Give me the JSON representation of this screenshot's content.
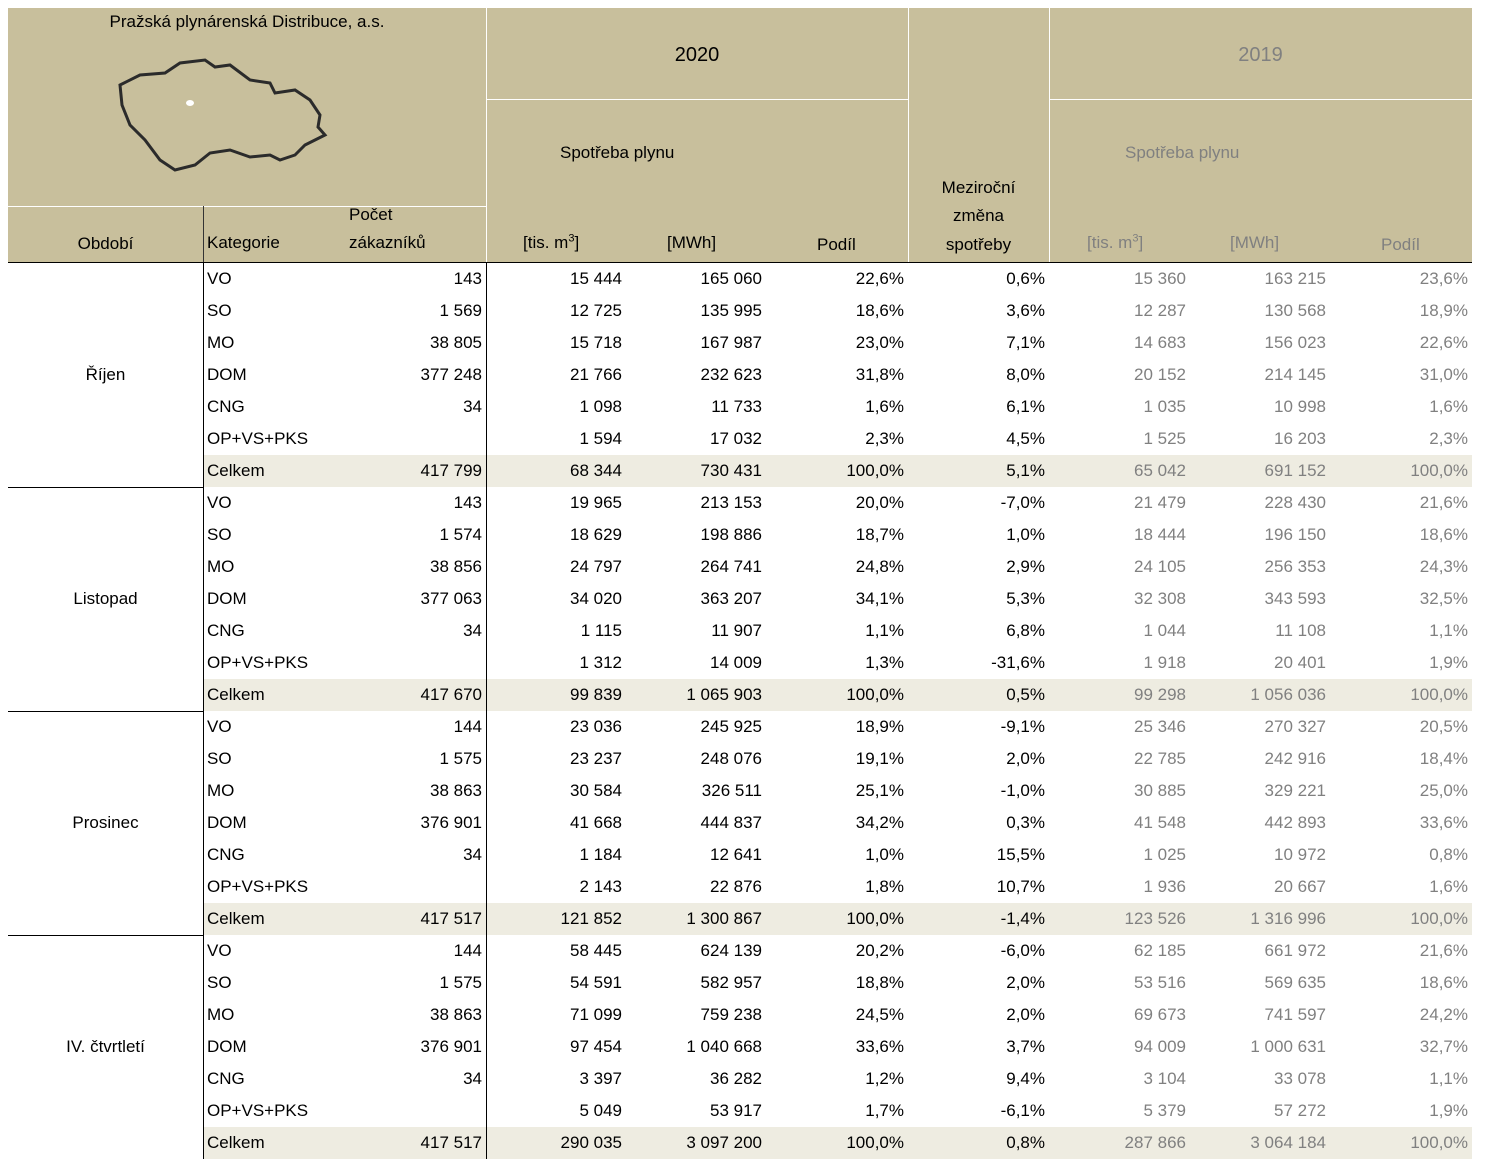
{
  "header": {
    "company": "Pražská plynárenská Distribuce, a.s.",
    "year_2020": "2020",
    "year_2019": "2019",
    "consumption_2020": "Spotřeba plynu",
    "consumption_2019": "Spotřeba plynu",
    "period": "Období",
    "category": "Kategorie",
    "customers": [
      "Počet",
      "zákazníků"
    ],
    "unit_volume": [
      "[tis. m",
      "3",
      "]"
    ],
    "unit_energy": "[MWh]",
    "share": "Podíl",
    "change": [
      "Meziroční",
      "změna",
      "spotřeby"
    ]
  },
  "groups": [
    {
      "period": "Říjen",
      "rows": [
        [
          "VO",
          "143",
          "15 444",
          "165 060",
          "22,6%",
          "0,6%",
          "15 360",
          "163 215",
          "23,6%"
        ],
        [
          "SO",
          "1 569",
          "12 725",
          "135 995",
          "18,6%",
          "3,6%",
          "12 287",
          "130 568",
          "18,9%"
        ],
        [
          "MO",
          "38 805",
          "15 718",
          "167 987",
          "23,0%",
          "7,1%",
          "14 683",
          "156 023",
          "22,6%"
        ],
        [
          "DOM",
          "377 248",
          "21 766",
          "232 623",
          "31,8%",
          "8,0%",
          "20 152",
          "214 145",
          "31,0%"
        ],
        [
          "CNG",
          "34",
          "1 098",
          "11 733",
          "1,6%",
          "6,1%",
          "1 035",
          "10 998",
          "1,6%"
        ],
        [
          "OP+VS+PKS",
          null,
          "1 594",
          "17 032",
          "2,3%",
          "4,5%",
          "1 525",
          "16 203",
          "2,3%"
        ],
        [
          "Celkem",
          "417 799",
          "68 344",
          "730 431",
          "100,0%",
          "5,1%",
          "65 042",
          "691 152",
          "100,0%"
        ]
      ]
    },
    {
      "period": "Listopad",
      "rows": [
        [
          "VO",
          "143",
          "19 965",
          "213 153",
          "20,0%",
          "-7,0%",
          "21 479",
          "228 430",
          "21,6%"
        ],
        [
          "SO",
          "1 574",
          "18 629",
          "198 886",
          "18,7%",
          "1,0%",
          "18 444",
          "196 150",
          "18,6%"
        ],
        [
          "MO",
          "38 856",
          "24 797",
          "264 741",
          "24,8%",
          "2,9%",
          "24 105",
          "256 353",
          "24,3%"
        ],
        [
          "DOM",
          "377 063",
          "34 020",
          "363 207",
          "34,1%",
          "5,3%",
          "32 308",
          "343 593",
          "32,5%"
        ],
        [
          "CNG",
          "34",
          "1 115",
          "11 907",
          "1,1%",
          "6,8%",
          "1 044",
          "11 108",
          "1,1%"
        ],
        [
          "OP+VS+PKS",
          null,
          "1 312",
          "14 009",
          "1,3%",
          "-31,6%",
          "1 918",
          "20 401",
          "1,9%"
        ],
        [
          "Celkem",
          "417 670",
          "99 839",
          "1 065 903",
          "100,0%",
          "0,5%",
          "99 298",
          "1 056 036",
          "100,0%"
        ]
      ]
    },
    {
      "period": "Prosinec",
      "rows": [
        [
          "VO",
          "144",
          "23 036",
          "245 925",
          "18,9%",
          "-9,1%",
          "25 346",
          "270 327",
          "20,5%"
        ],
        [
          "SO",
          "1 575",
          "23 237",
          "248 076",
          "19,1%",
          "2,0%",
          "22 785",
          "242 916",
          "18,4%"
        ],
        [
          "MO",
          "38 863",
          "30 584",
          "326 511",
          "25,1%",
          "-1,0%",
          "30 885",
          "329 221",
          "25,0%"
        ],
        [
          "DOM",
          "376 901",
          "41 668",
          "444 837",
          "34,2%",
          "0,3%",
          "41 548",
          "442 893",
          "33,6%"
        ],
        [
          "CNG",
          "34",
          "1 184",
          "12 641",
          "1,0%",
          "15,5%",
          "1 025",
          "10 972",
          "0,8%"
        ],
        [
          "OP+VS+PKS",
          null,
          "2 143",
          "22 876",
          "1,8%",
          "10,7%",
          "1 936",
          "20 667",
          "1,6%"
        ],
        [
          "Celkem",
          "417 517",
          "121 852",
          "1 300 867",
          "100,0%",
          "-1,4%",
          "123 526",
          "1 316 996",
          "100,0%"
        ]
      ]
    },
    {
      "period": "IV. čtvrtletí",
      "rows": [
        [
          "VO",
          "144",
          "58 445",
          "624 139",
          "20,2%",
          "-6,0%",
          "62 185",
          "661 972",
          "21,6%"
        ],
        [
          "SO",
          "1 575",
          "54 591",
          "582 957",
          "18,8%",
          "2,0%",
          "53 516",
          "569 635",
          "18,6%"
        ],
        [
          "MO",
          "38 863",
          "71 099",
          "759 238",
          "24,5%",
          "2,0%",
          "69 673",
          "741 597",
          "24,2%"
        ],
        [
          "DOM",
          "376 901",
          "97 454",
          "1 040 668",
          "33,6%",
          "3,7%",
          "94 009",
          "1 000 631",
          "32,7%"
        ],
        [
          "CNG",
          "34",
          "3 397",
          "36 282",
          "1,2%",
          "9,4%",
          "3 104",
          "33 078",
          "1,1%"
        ],
        [
          "OP+VS+PKS",
          null,
          "5 049",
          "53 917",
          "1,7%",
          "-6,1%",
          "5 379",
          "57 272",
          "1,9%"
        ],
        [
          "Celkem",
          "417 517",
          "290 035",
          "3 097 200",
          "100,0%",
          "0,8%",
          "287 866",
          "3 064 184",
          "100,0%"
        ]
      ]
    }
  ]
}
